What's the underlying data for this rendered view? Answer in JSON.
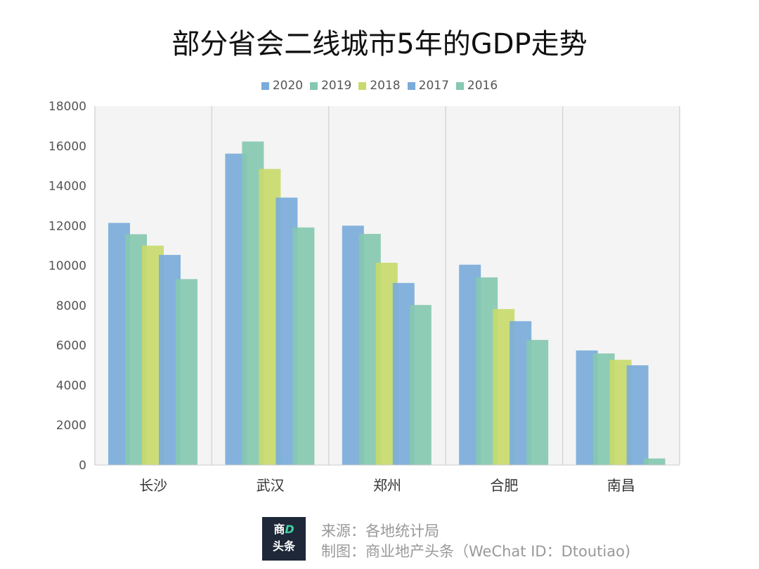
{
  "chart_data": {
    "type": "bar",
    "title": "部分省会二线城市5年的GDP走势",
    "categories": [
      "长沙",
      "武汉",
      "郑州",
      "合肥",
      "南昌"
    ],
    "series": [
      {
        "name": "2020",
        "color": "#7aabda",
        "values": [
          12142,
          15616,
          12003,
          10046,
          5746
        ]
      },
      {
        "name": "2019",
        "color": "#86c8b0",
        "values": [
          11574,
          16223,
          11590,
          9409,
          5596
        ]
      },
      {
        "name": "2018",
        "color": "#c8da6c",
        "values": [
          11003,
          14847,
          10143,
          7823,
          5275
        ]
      },
      {
        "name": "2017",
        "color": "#7aabda",
        "values": [
          10536,
          13410,
          9130,
          7213,
          5003
        ]
      },
      {
        "name": "2016",
        "color": "#86c8b0",
        "values": [
          9323,
          11913,
          8025,
          6274,
          330
        ]
      }
    ],
    "ylim": [
      0,
      18000
    ],
    "yticks": [
      0,
      2000,
      4000,
      6000,
      8000,
      10000,
      12000,
      14000,
      16000,
      18000
    ],
    "grid": "vertical separators between categories",
    "legend": "top-center",
    "plot_background": "#f4f4f4"
  },
  "footer": {
    "logo_line1": "商D",
    "logo_line2": "头条",
    "source": "来源：各地统计局",
    "credit": "制图：商业地产头条（WeChat ID：Dtoutiao)"
  }
}
